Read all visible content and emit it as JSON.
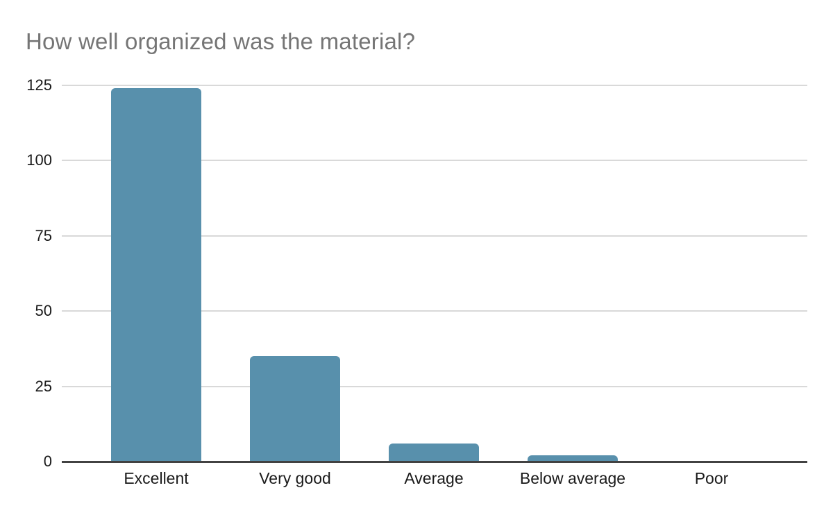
{
  "chart_data": {
    "type": "bar",
    "title": "How well organized was the material?",
    "categories": [
      "Excellent",
      "Very good",
      "Average",
      "Below average",
      "Poor"
    ],
    "values": [
      124,
      35,
      6,
      2,
      0
    ],
    "xlabel": "",
    "ylabel": "",
    "ylim": [
      0,
      125
    ],
    "yticks": [
      0,
      25,
      50,
      75,
      100,
      125
    ],
    "grid": true,
    "legend_position": "none",
    "bar_color": "#5890AC",
    "title_color": "#757575",
    "tick_label_color": "#1a1a1a",
    "gridline_color": "#d9d9d9",
    "axis_line_color": "#424242",
    "background_color": "#ffffff"
  }
}
